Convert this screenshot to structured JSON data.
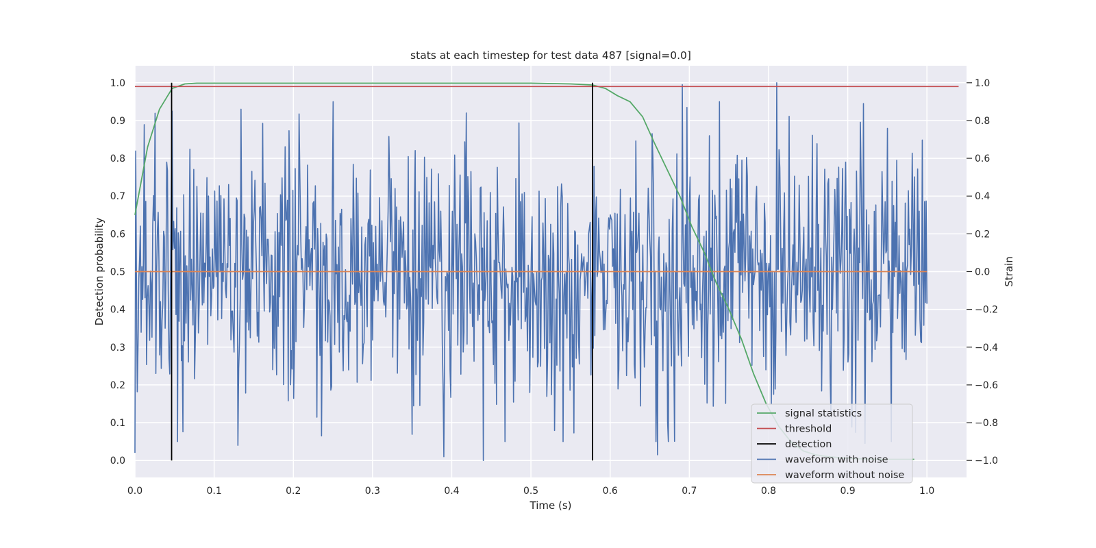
{
  "chart_data": {
    "type": "line",
    "title": "stats at each timestep for test data 487 [signal=0.0]",
    "xlabel": "Time (s)",
    "ylabel": "Detection probability",
    "y2label": "Strain",
    "xlim": [
      0.0,
      1.05
    ],
    "ylim": [
      -0.045,
      1.045
    ],
    "y2lim": [
      -1.09,
      1.09
    ],
    "xticks": [
      "0.0",
      "0.1",
      "0.2",
      "0.3",
      "0.4",
      "0.5",
      "0.6",
      "0.7",
      "0.8",
      "0.9",
      "1.0"
    ],
    "yticks": [
      "0.0",
      "0.1",
      "0.2",
      "0.3",
      "0.4",
      "0.5",
      "0.6",
      "0.7",
      "0.8",
      "0.9",
      "1.0"
    ],
    "y2ticks": [
      "−1.0",
      "−0.8",
      "−0.6",
      "−0.4",
      "−0.2",
      "0.0",
      "0.2",
      "0.4",
      "0.6",
      "0.8",
      "1.0"
    ],
    "grid": true,
    "legend_position": "lower-right",
    "series": [
      {
        "name": "signal statistics",
        "color": "#55a868",
        "axis": "left",
        "x": [
          0.0,
          0.016,
          0.031,
          0.047,
          0.063,
          0.078,
          0.1,
          0.2,
          0.3,
          0.4,
          0.5,
          0.55,
          0.578,
          0.594,
          0.609,
          0.625,
          0.641,
          0.656,
          0.672,
          0.688,
          0.703,
          0.719,
          0.734,
          0.75,
          0.766,
          0.781,
          0.797,
          0.813,
          0.828,
          0.844,
          0.859,
          0.875,
          0.891,
          0.906,
          0.922,
          0.938,
          0.953,
          0.969,
          0.984
        ],
        "y": [
          0.65,
          0.83,
          0.93,
          0.985,
          0.997,
          0.999,
          0.999,
          0.999,
          0.999,
          0.999,
          0.999,
          0.997,
          0.994,
          0.985,
          0.966,
          0.95,
          0.91,
          0.84,
          0.77,
          0.7,
          0.62,
          0.55,
          0.47,
          0.4,
          0.32,
          0.23,
          0.15,
          0.09,
          0.05,
          0.025,
          0.015,
          0.01,
          0.007,
          0.005,
          0.004,
          0.003,
          0.003,
          0.003,
          0.003
        ]
      },
      {
        "name": "threshold",
        "color": "#c44e52",
        "axis": "left",
        "x": [
          0.0,
          1.04
        ],
        "y": [
          0.99,
          0.99
        ]
      },
      {
        "name": "detection",
        "color": "#000000",
        "axis": "left",
        "vlines": [
          0.0463,
          0.5778
        ],
        "y": [
          0.0,
          1.0
        ]
      },
      {
        "name": "waveform with noise",
        "color": "#4c72b0",
        "axis": "right",
        "x_range": [
          0.0,
          1.0
        ],
        "n_points": 1024,
        "noise_std": 0.34,
        "noise_seed": 487,
        "y_range": [
          -1.0,
          1.0
        ],
        "peaks": [
          {
            "x": 0.0,
            "y": -0.96
          },
          {
            "x": 0.047,
            "y": 0.85
          },
          {
            "x": 0.13,
            "y": -0.92
          },
          {
            "x": 0.134,
            "y": 0.86
          },
          {
            "x": 0.236,
            "y": -0.87
          },
          {
            "x": 0.39,
            "y": -0.98
          },
          {
            "x": 0.418,
            "y": 0.84
          },
          {
            "x": 0.44,
            "y": -1.0
          },
          {
            "x": 0.66,
            "y": -0.97
          },
          {
            "x": 0.691,
            "y": 0.99
          },
          {
            "x": 0.81,
            "y": 1.0
          },
          {
            "x": 0.92,
            "y": 0.89
          },
          {
            "x": 0.922,
            "y": -0.91
          }
        ]
      },
      {
        "name": "waveform without noise",
        "color": "#dd8452",
        "axis": "right",
        "x": [
          0.0,
          1.0
        ],
        "y": [
          0.0,
          0.0
        ]
      }
    ]
  }
}
